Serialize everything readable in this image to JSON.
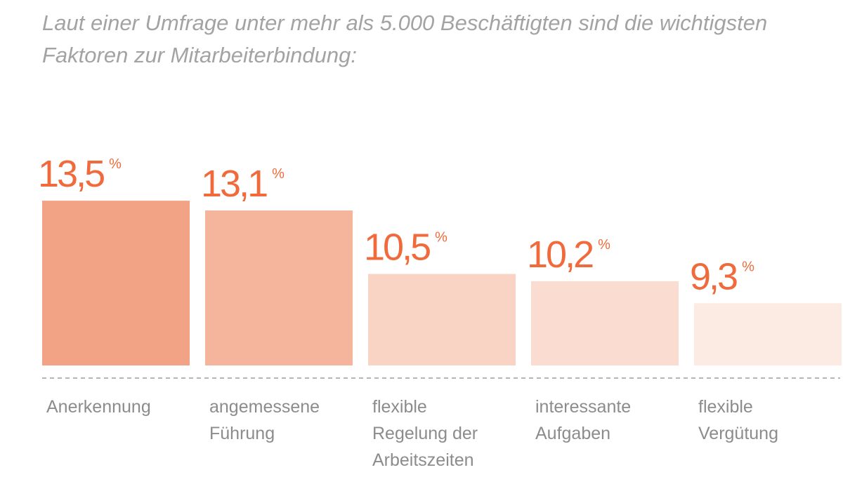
{
  "intro": {
    "text": "Laut einer Umfrage unter mehr als 5.000 Beschäftigten sind die wichtigsten Faktoren zur Mitarbeiterbindung:"
  },
  "colors": {
    "value_text": "#f06a3c",
    "label_text": "#8c8c8c",
    "baseline": "#b5b5b5",
    "intro_text": "#a3a3a3",
    "bars": [
      "#f2a285",
      "#f5b49c",
      "#f9d3c4",
      "#fadcd0",
      "#fcebe3"
    ]
  },
  "chart_data": {
    "type": "bar",
    "categories": [
      "Anerkennung",
      "angemessene Führung",
      "flexible Regelung der Arbeitszeiten",
      "interessante Aufgaben",
      "flexible Vergütung"
    ],
    "category_lines": [
      [
        "Anerkennung"
      ],
      [
        "angemessene",
        "Führung"
      ],
      [
        "flexible",
        "Regelung der",
        "Arbeitszeiten"
      ],
      [
        "interessante",
        "Aufgaben"
      ],
      [
        "flexible",
        "Vergütung"
      ]
    ],
    "values": [
      13.5,
      13.1,
      10.5,
      10.2,
      9.3
    ],
    "value_labels": [
      "13,5",
      "13,1",
      "10,5",
      "10,2",
      "9,3"
    ],
    "unit": "%",
    "grid": false,
    "baseline_style": "dashed"
  }
}
